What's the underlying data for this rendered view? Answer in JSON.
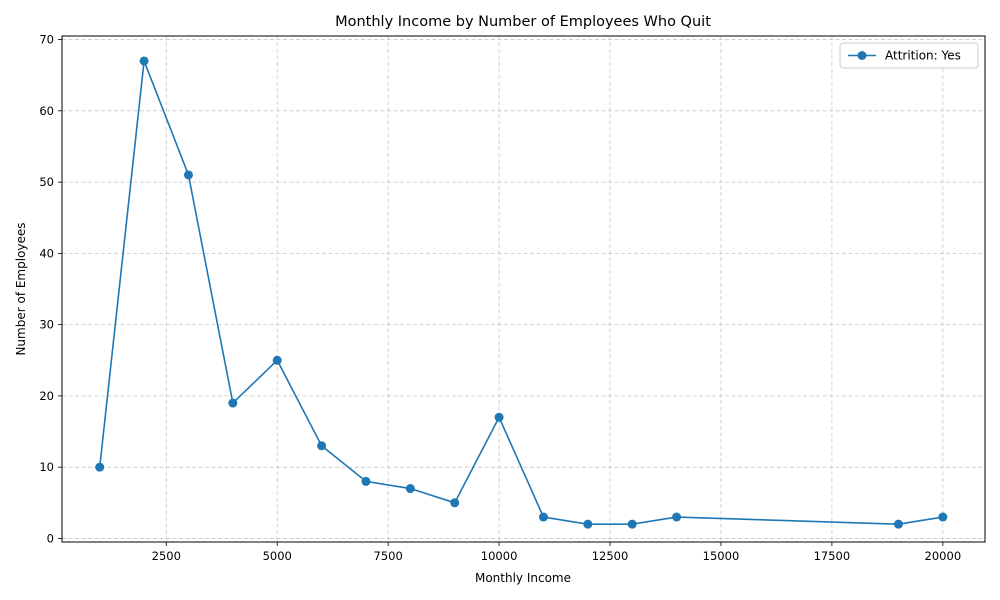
{
  "chart_data": {
    "type": "line",
    "title": "Monthly Income by Number of Employees Who Quit",
    "xlabel": "Monthly Income",
    "ylabel": "Number of Employees",
    "xlim": [
      150,
      20950
    ],
    "ylim": [
      -0.5,
      70.5
    ],
    "xticks": [
      2500,
      5000,
      7500,
      10000,
      12500,
      15000,
      17500,
      20000
    ],
    "yticks": [
      0,
      10,
      20,
      30,
      40,
      50,
      60,
      70
    ],
    "grid": true,
    "legend_position": "top-right",
    "series": [
      {
        "name": "Attrition: Yes",
        "color": "#1f77b4",
        "marker": "circle",
        "x": [
          1000,
          2000,
          3000,
          4000,
          5000,
          6000,
          7000,
          8000,
          9000,
          10000,
          11000,
          12000,
          13000,
          14000,
          19000,
          20000
        ],
        "y": [
          10,
          67,
          51,
          19,
          25,
          13,
          8,
          7,
          5,
          17,
          3,
          2,
          2,
          3,
          2,
          3
        ]
      }
    ]
  }
}
